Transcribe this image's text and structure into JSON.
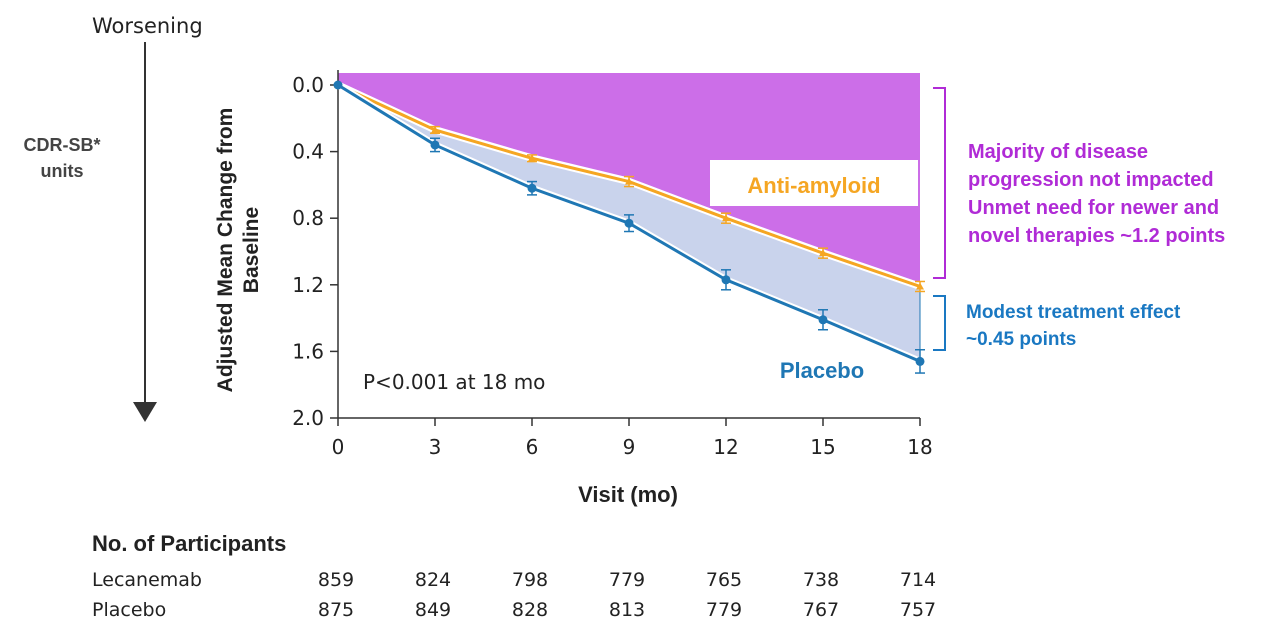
{
  "colors": {
    "anti_amyloid": "#f5a623",
    "placebo": "#1f77b4",
    "unmet_region": "#cc6ee8",
    "effect_region": "#c9d3ec",
    "annotation_purple": "#b02bd6",
    "annotation_blue": "#1a78c2"
  },
  "chart_data": {
    "type": "line",
    "x": [
      0,
      3,
      6,
      9,
      12,
      15,
      18
    ],
    "xlabel": "Visit (mo)",
    "ylabel": "Adjusted Mean Change from Baseline",
    "ylim": [
      0.0,
      2.0
    ],
    "y_inverted": true,
    "xticks": [
      "0",
      "3",
      "6",
      "9",
      "12",
      "15",
      "18"
    ],
    "yticks": [
      "0.0",
      "0.4",
      "0.8",
      "1.2",
      "1.6",
      "2.0"
    ],
    "series": [
      {
        "name": "Anti-amyloid",
        "color": "#f5a623",
        "values": [
          0.0,
          0.27,
          0.44,
          0.58,
          0.8,
          1.01,
          1.21
        ],
        "error": [
          0,
          0.02,
          0.02,
          0.03,
          0.03,
          0.03,
          0.03
        ]
      },
      {
        "name": "Placebo",
        "color": "#1f77b4",
        "values": [
          0.0,
          0.36,
          0.62,
          0.83,
          1.17,
          1.41,
          1.66
        ],
        "error": [
          0,
          0.04,
          0.04,
          0.05,
          0.06,
          0.06,
          0.07
        ]
      }
    ],
    "annotations": {
      "p_value": "P<0.001 at 18 mo",
      "unmet_need": [
        "Majority of disease",
        "progression not impacted",
        "Unmet need for newer and",
        "novel therapies ~1.2 points"
      ],
      "treatment_effect": [
        "Modest treatment effect",
        "~0.45 points"
      ]
    }
  },
  "side_labels": {
    "worsening": "Worsening",
    "units_line1": "CDR-SB*",
    "units_line2": "units",
    "ylabel_line1": "Adjusted Mean Change from",
    "ylabel_line2": "Baseline"
  },
  "participants": {
    "title": "No. of Participants",
    "rows": [
      {
        "label": "Lecanemab",
        "values": [
          "859",
          "824",
          "798",
          "779",
          "765",
          "738",
          "714"
        ]
      },
      {
        "label": "Placebo",
        "values": [
          "875",
          "849",
          "828",
          "813",
          "779",
          "767",
          "757"
        ]
      }
    ]
  }
}
